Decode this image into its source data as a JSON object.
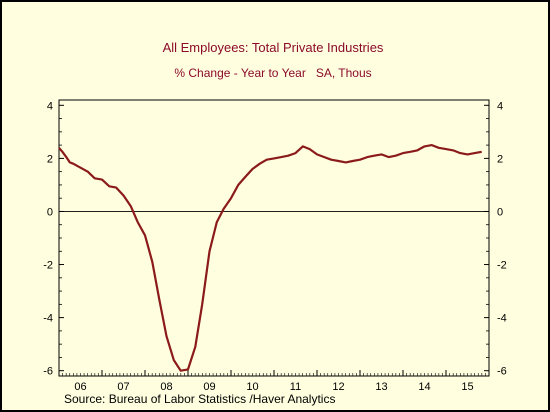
{
  "chart_data": {
    "type": "line",
    "title": "All Employees: Total Private Industries",
    "subtitle": "% Change - Year to Year   SA, Thous",
    "source": "Source:  Bureau of Labor Statistics /Haver Analytics",
    "ylim": [
      -6.2,
      4.2
    ],
    "xlim": [
      2006.0,
      2016.0
    ],
    "yticks": [
      4,
      2,
      0,
      -2,
      -4,
      -6
    ],
    "ytick_labels": [
      "4",
      "2",
      "0",
      "-2",
      "-4",
      "-6"
    ],
    "xtick_labels": [
      "06",
      "07",
      "08",
      "09",
      "10",
      "11",
      "12",
      "13",
      "14",
      "15"
    ],
    "grid": false,
    "zero_line": true,
    "colors": {
      "line": "#8b1a1a",
      "background": "#ffffe0",
      "title": "#8b0a2a"
    },
    "series": [
      {
        "x": [
          2006.0,
          2006.08,
          2006.17,
          2006.25,
          2006.33,
          2006.5,
          2006.67,
          2006.83,
          2007.0,
          2007.17,
          2007.33,
          2007.5,
          2007.67,
          2007.83,
          2008.0,
          2008.17,
          2008.33,
          2008.5,
          2008.67,
          2008.83,
          2009.0,
          2009.17,
          2009.33,
          2009.5,
          2009.67,
          2009.83,
          2010.0,
          2010.17,
          2010.33,
          2010.5,
          2010.67,
          2010.83,
          2011.0,
          2011.17,
          2011.33,
          2011.5,
          2011.67,
          2011.83,
          2012.0,
          2012.17,
          2012.33,
          2012.5,
          2012.67,
          2012.83,
          2013.0,
          2013.17,
          2013.33,
          2013.5,
          2013.67,
          2013.83,
          2014.0,
          2014.17,
          2014.33,
          2014.5,
          2014.67,
          2014.83,
          2015.0,
          2015.17,
          2015.33,
          2015.5,
          2015.67,
          2015.83
        ],
        "y": [
          2.4,
          2.25,
          2.05,
          1.85,
          1.8,
          1.65,
          1.5,
          1.25,
          1.2,
          0.95,
          0.9,
          0.6,
          0.2,
          -0.4,
          -0.9,
          -1.9,
          -3.3,
          -4.7,
          -5.6,
          -6.0,
          -5.95,
          -5.1,
          -3.5,
          -1.5,
          -0.4,
          0.1,
          0.5,
          1.0,
          1.3,
          1.6,
          1.8,
          1.95,
          2.0,
          2.05,
          2.1,
          2.2,
          2.45,
          2.35,
          2.15,
          2.05,
          1.95,
          1.9,
          1.85,
          1.9,
          1.95,
          2.05,
          2.1,
          2.15,
          2.05,
          2.1,
          2.2,
          2.25,
          2.3,
          2.45,
          2.5,
          2.4,
          2.35,
          2.3,
          2.2,
          2.15,
          2.2,
          2.25
        ]
      }
    ]
  }
}
